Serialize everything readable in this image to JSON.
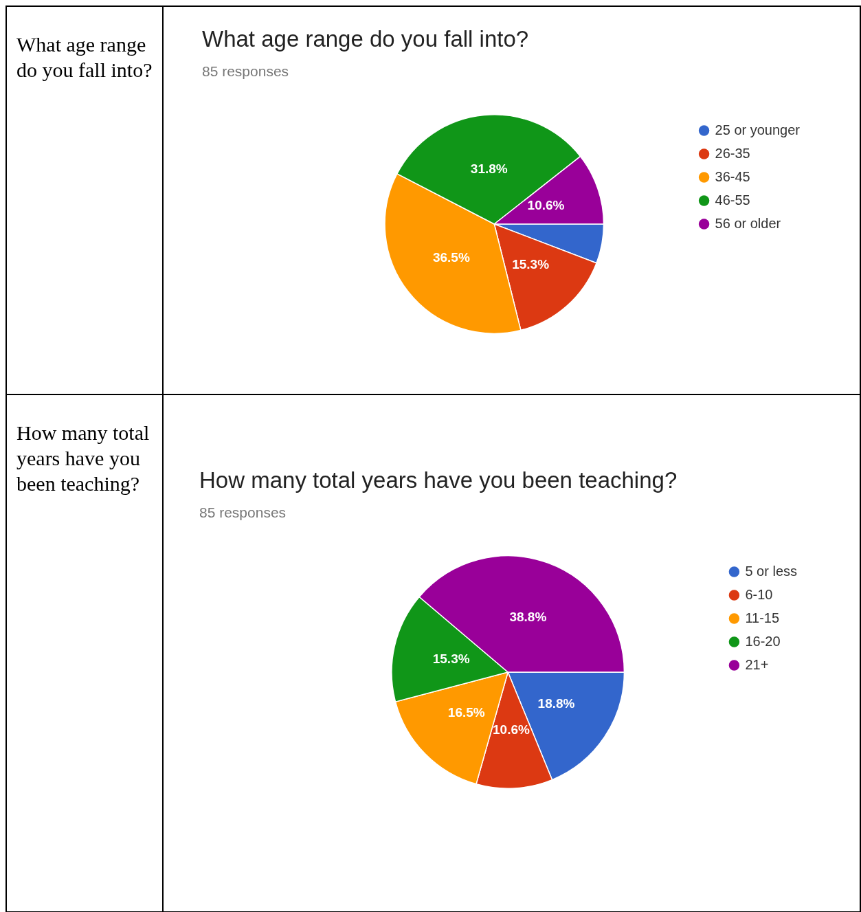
{
  "chart_data": [
    {
      "type": "pie",
      "title": "What age range do you fall into?",
      "subtitle": "85 responses",
      "annotations": [
        "What age range do you fall into?"
      ],
      "categories": [
        "25 or younger",
        "26-35",
        "36-45",
        "46-55",
        "56 or older"
      ],
      "values": [
        5.8,
        15.3,
        36.5,
        31.8,
        10.6
      ],
      "colors": [
        "#3366cc",
        "#dc3912",
        "#ff9900",
        "#109618",
        "#990099"
      ],
      "value_labels": [
        null,
        "15.3%",
        "36.5%",
        "31.8%",
        "10.6%"
      ],
      "legend": "right"
    },
    {
      "type": "pie",
      "title": "How many total years have you been teaching?",
      "subtitle": "85 responses",
      "annotations": [
        "How many total years have you been teaching?"
      ],
      "categories": [
        "5 or less",
        "6-10",
        "11-15",
        "16-20",
        "21+"
      ],
      "values": [
        18.8,
        10.6,
        16.5,
        15.3,
        38.8
      ],
      "colors": [
        "#3366cc",
        "#dc3912",
        "#ff9900",
        "#109618",
        "#990099"
      ],
      "value_labels": [
        "18.8%",
        "10.6%",
        "16.5%",
        "15.3%",
        "38.8%"
      ],
      "legend": "right"
    }
  ]
}
